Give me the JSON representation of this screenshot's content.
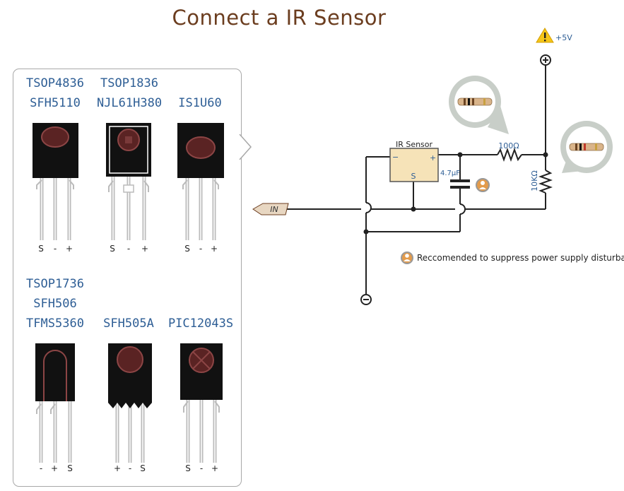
{
  "title": "Connect a IR Sensor",
  "parts": {
    "p1": {
      "names": [
        "TSOP4836",
        "SFH5110"
      ],
      "pins": [
        "S",
        "-",
        "+"
      ]
    },
    "p2": {
      "names": [
        "TSOP1836",
        "NJL61H380"
      ],
      "pins": [
        "S",
        "-",
        "+"
      ]
    },
    "p3": {
      "names": [
        "IS1U60"
      ],
      "pins": [
        "S",
        "-",
        "+"
      ]
    },
    "p4": {
      "names": [
        "TSOP1736",
        "SFH506",
        "TFMS5360"
      ],
      "pins": [
        "-",
        "+",
        "S"
      ]
    },
    "p5": {
      "names": [
        "SFH505A"
      ],
      "pins": [
        "+",
        "-",
        "S"
      ]
    },
    "p6": {
      "names": [
        "PIC12043S"
      ],
      "pins": [
        "S",
        "-",
        "+"
      ]
    }
  },
  "circuit": {
    "supply_label": "+5V",
    "sensor_label": "IR Sensor",
    "sensor_minus": "−",
    "sensor_plus": "+",
    "sensor_s": "S",
    "resistor1": "100Ω",
    "resistor2": "10KΩ",
    "capacitor": "4.7µF",
    "input_label": "IN",
    "plus_symbol": "+",
    "minus_symbol": "−"
  },
  "note": "Reccomended to suppress power supply disturbances",
  "colors": {
    "title": "#6b3d1f",
    "part_label": "#2e5e95",
    "sensor_fill": "#f6e3b8",
    "warning": "#f5c518",
    "capacitor_badge": "#e39b4b"
  }
}
